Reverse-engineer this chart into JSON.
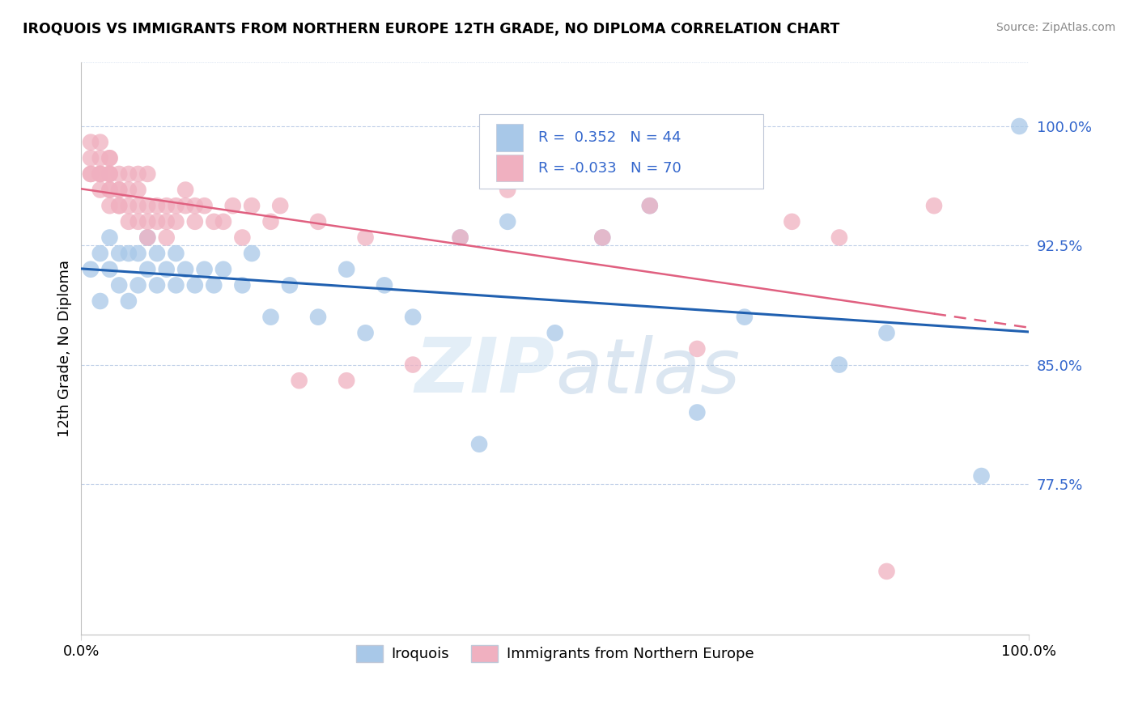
{
  "title": "IROQUOIS VS IMMIGRANTS FROM NORTHERN EUROPE 12TH GRADE, NO DIPLOMA CORRELATION CHART",
  "source": "Source: ZipAtlas.com",
  "ylabel": "12th Grade, No Diploma",
  "xlim": [
    0.0,
    100.0
  ],
  "ylim": [
    68.0,
    104.0
  ],
  "y_ticks": [
    77.5,
    85.0,
    92.5,
    100.0
  ],
  "y_tick_labels": [
    "77.5%",
    "85.0%",
    "92.5%",
    "100.0%"
  ],
  "legend_labels": [
    "Iroquois",
    "Immigrants from Northern Europe"
  ],
  "R_blue": 0.352,
  "N_blue": 44,
  "R_pink": -0.033,
  "N_pink": 70,
  "blue_color": "#a8c8e8",
  "pink_color": "#f0b0c0",
  "blue_line_color": "#2060b0",
  "pink_line_color": "#e06080",
  "tick_label_color": "#3366cc",
  "blue_scatter_x": [
    1,
    2,
    2,
    3,
    3,
    4,
    4,
    5,
    5,
    6,
    6,
    7,
    7,
    8,
    8,
    9,
    10,
    10,
    11,
    12,
    13,
    14,
    15,
    17,
    18,
    20,
    22,
    25,
    28,
    30,
    32,
    35,
    40,
    42,
    45,
    50,
    55,
    60,
    65,
    70,
    80,
    85,
    95,
    99
  ],
  "blue_scatter_y": [
    91,
    92,
    89,
    91,
    93,
    90,
    92,
    89,
    92,
    90,
    92,
    91,
    93,
    90,
    92,
    91,
    90,
    92,
    91,
    90,
    91,
    90,
    91,
    90,
    92,
    88,
    90,
    88,
    91,
    87,
    90,
    88,
    93,
    80,
    94,
    87,
    93,
    95,
    82,
    88,
    85,
    87,
    78,
    100
  ],
  "pink_scatter_x": [
    1,
    1,
    1,
    1,
    2,
    2,
    2,
    2,
    2,
    2,
    3,
    3,
    3,
    3,
    3,
    3,
    3,
    3,
    4,
    4,
    4,
    4,
    4,
    5,
    5,
    5,
    5,
    6,
    6,
    6,
    6,
    7,
    7,
    7,
    7,
    8,
    8,
    9,
    9,
    9,
    10,
    10,
    11,
    11,
    12,
    12,
    13,
    14,
    15,
    16,
    17,
    18,
    20,
    21,
    23,
    25,
    28,
    30,
    35,
    40,
    45,
    50,
    55,
    60,
    65,
    70,
    75,
    80,
    85,
    90
  ],
  "pink_scatter_y": [
    97,
    97,
    98,
    99,
    96,
    97,
    97,
    97,
    98,
    99,
    95,
    96,
    96,
    97,
    97,
    97,
    98,
    98,
    95,
    95,
    96,
    96,
    97,
    94,
    95,
    96,
    97,
    94,
    95,
    96,
    97,
    93,
    94,
    95,
    97,
    94,
    95,
    93,
    94,
    95,
    94,
    95,
    95,
    96,
    94,
    95,
    95,
    94,
    94,
    95,
    93,
    95,
    94,
    95,
    84,
    94,
    84,
    93,
    85,
    93,
    96,
    97,
    93,
    95,
    86,
    97,
    94,
    93,
    72,
    95
  ]
}
